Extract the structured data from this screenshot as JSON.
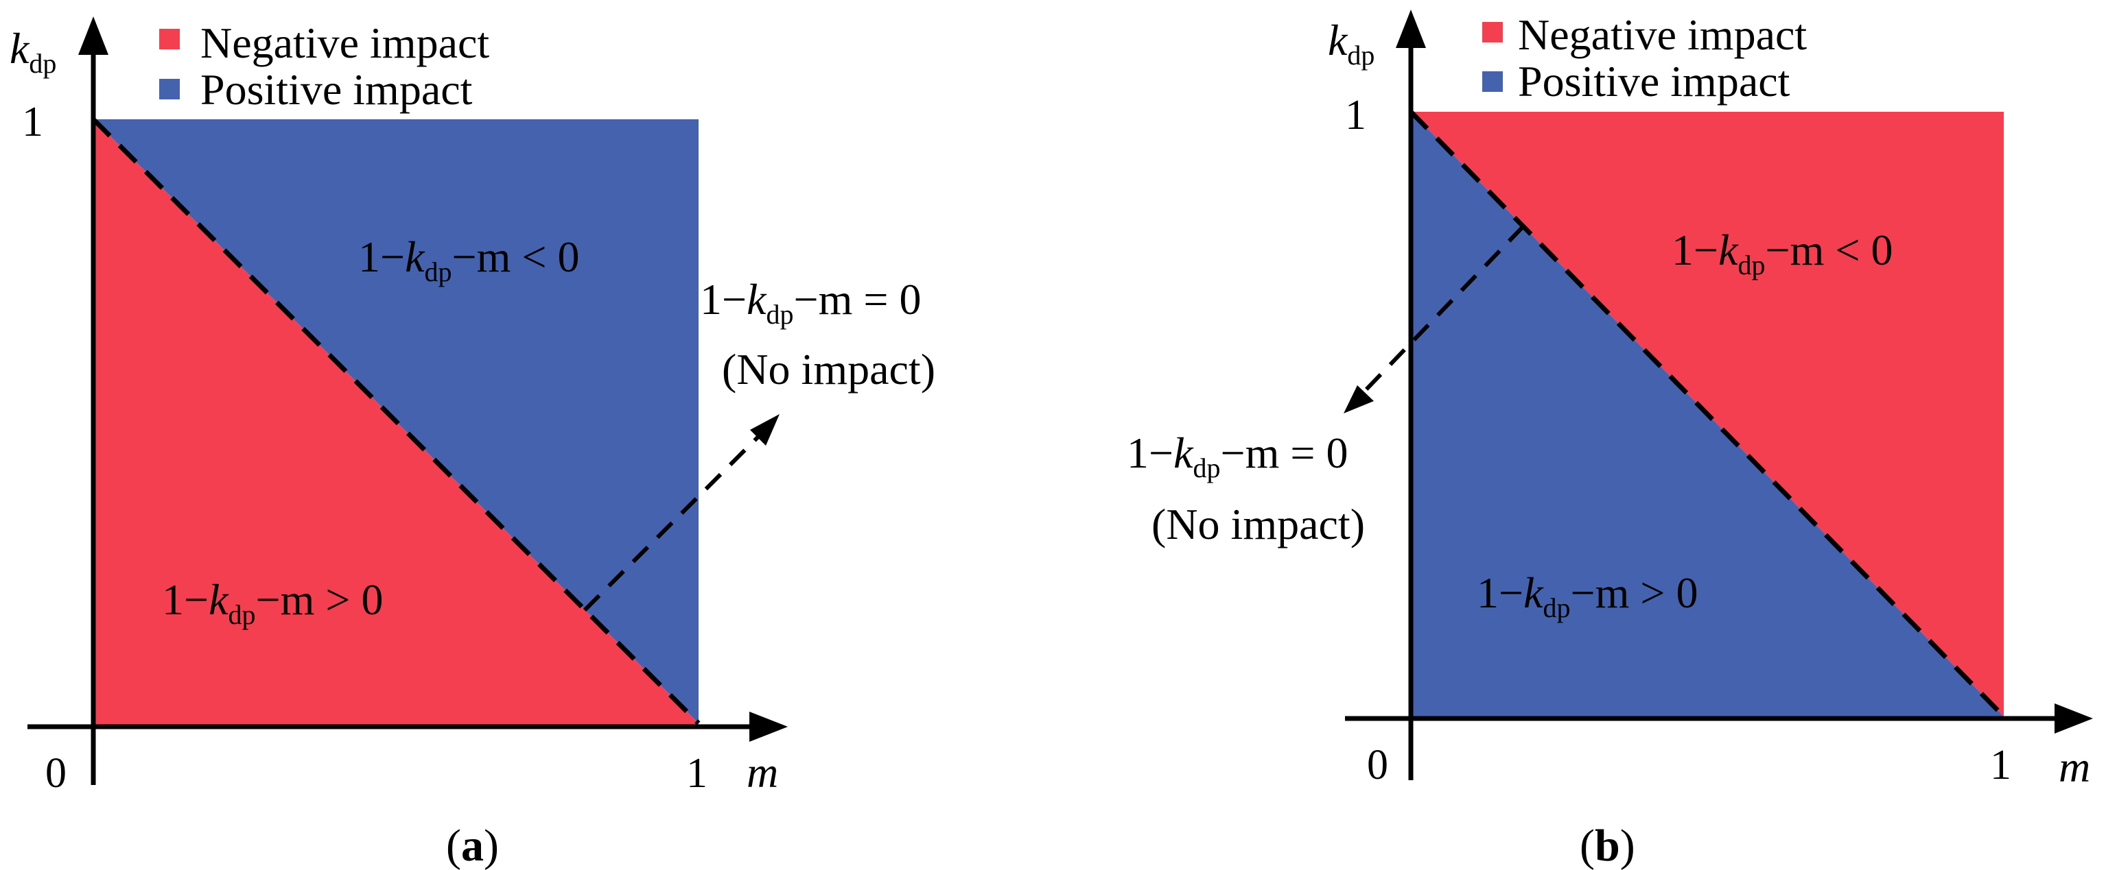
{
  "colors": {
    "negative": "#f43f50",
    "positive": "#4462ad",
    "axis": "#000000"
  },
  "panels": [
    {
      "id": "a",
      "caption_open": "(",
      "caption_letter": "a",
      "caption_close": ")",
      "legend": [
        {
          "label": "Negative impact",
          "color": "#f43f50"
        },
        {
          "label": "Positive impact",
          "color": "#4462ad"
        }
      ],
      "upper_region": "positive",
      "lower_region": "negative",
      "y_axis_label": "k",
      "y_axis_sub": "dp",
      "x_axis_label": "m",
      "tick_origin": "0",
      "tick_x_one": "1",
      "tick_y_one": "1",
      "upper_eq": {
        "pre": "1−",
        "k": "k",
        "sub": "dp",
        "post": "−m < 0"
      },
      "lower_eq": {
        "pre": "1−",
        "k": "k",
        "sub": "dp",
        "post": "−m > 0"
      },
      "line_eq": {
        "pre": "1−",
        "k": "k",
        "sub": "dp",
        "post": "−m = 0"
      },
      "no_impact": "(No impact)"
    },
    {
      "id": "b",
      "caption_open": "(",
      "caption_letter": "b",
      "caption_close": ")",
      "legend": [
        {
          "label": "Negative impact",
          "color": "#f43f50"
        },
        {
          "label": "Positive impact",
          "color": "#4462ad"
        }
      ],
      "upper_region": "negative",
      "lower_region": "positive",
      "y_axis_label": "k",
      "y_axis_sub": "dp",
      "x_axis_label": "m",
      "tick_origin": "0",
      "tick_x_one": "1",
      "tick_y_one": "1",
      "upper_eq": {
        "pre": "1−",
        "k": "k",
        "sub": "dp",
        "post": "−m < 0"
      },
      "lower_eq": {
        "pre": "1−",
        "k": "k",
        "sub": "dp",
        "post": "−m > 0"
      },
      "line_eq": {
        "pre": "1−",
        "k": "k",
        "sub": "dp",
        "post": "−m = 0"
      },
      "no_impact": "(No impact)"
    }
  ]
}
